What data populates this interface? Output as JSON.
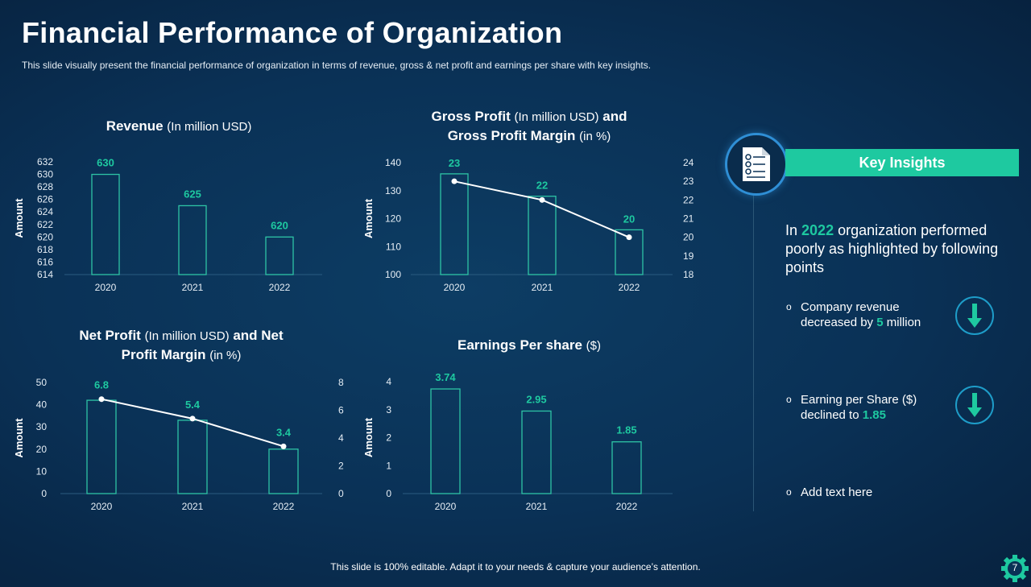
{
  "title": "Financial Performance of Organization",
  "subtitle": "This slide visually present the financial performance  of organization  in terms of revenue,  gross & net profit  and earnings  per share with key insights.",
  "colors": {
    "accent": "#1ec9a0",
    "bar_stroke": "#2ec4a5",
    "line": "#ffffff",
    "background": "#0a3156",
    "circle_border": "#2f8fd6"
  },
  "chart_data": [
    {
      "type": "bar",
      "title_bold": "Revenue",
      "title_unit": "(In million USD)",
      "ylabel": "Amount",
      "categories": [
        "2020",
        "2021",
        "2022"
      ],
      "series": [
        {
          "values": [
            630,
            625,
            620
          ]
        }
      ],
      "data_labels": [
        "630",
        "625",
        "620"
      ],
      "ylim": [
        614,
        632
      ],
      "yticks": [
        614,
        616,
        618,
        620,
        622,
        624,
        626,
        628,
        630,
        632
      ]
    },
    {
      "type": "bar+line",
      "title_parts": [
        "Gross Profit",
        "(In million USD)",
        "and",
        "Gross Profit Margin",
        "(in %)"
      ],
      "ylabel": "Amount",
      "categories": [
        "2020",
        "2021",
        "2022"
      ],
      "series": [
        {
          "type": "bar",
          "axis": "left",
          "values": [
            136,
            128,
            116
          ]
        },
        {
          "type": "line",
          "axis": "right",
          "values": [
            23,
            22,
            20
          ]
        }
      ],
      "data_labels": [
        "23",
        "22",
        "20"
      ],
      "ylim": [
        100,
        140
      ],
      "yticks": [
        100,
        110,
        120,
        130,
        140
      ],
      "y2lim": [
        18,
        24
      ],
      "y2ticks": [
        18,
        19,
        20,
        21,
        22,
        23,
        24
      ]
    },
    {
      "type": "bar+line",
      "title_parts": [
        "Net Profit",
        "(In million USD)",
        "and Net",
        "Profit Margin",
        "(in %)"
      ],
      "ylabel": "Amount",
      "categories": [
        "2020",
        "2021",
        "2022"
      ],
      "series": [
        {
          "type": "bar",
          "axis": "left",
          "values": [
            42,
            33,
            20
          ]
        },
        {
          "type": "line",
          "axis": "right",
          "values": [
            6.8,
            5.4,
            3.4
          ]
        }
      ],
      "data_labels": [
        "6.8",
        "5.4",
        "3.4"
      ],
      "ylim": [
        0,
        50
      ],
      "yticks": [
        0,
        10,
        20,
        30,
        40,
        50
      ],
      "y2lim": [
        0,
        8
      ],
      "y2ticks": [
        0,
        2,
        4,
        6,
        8
      ]
    },
    {
      "type": "bar",
      "title_bold": "Earnings Per share",
      "title_unit": "($)",
      "ylabel": "Amount",
      "categories": [
        "2020",
        "2021",
        "2022"
      ],
      "series": [
        {
          "values": [
            3.74,
            2.95,
            1.85
          ]
        }
      ],
      "data_labels": [
        "3.74",
        "2.95",
        "1.85"
      ],
      "ylim": [
        0,
        4
      ],
      "yticks": [
        0,
        1,
        2,
        3,
        4
      ]
    }
  ],
  "insights": {
    "heading": "Key Insights",
    "icon": "document-list-icon",
    "intro_pre": "In",
    "intro_year": "2022",
    "intro_post": "organization performed poorly as highlighted by following points",
    "points": [
      {
        "pre": "Company revenue decreased by",
        "hl": "5",
        "post": "million",
        "icon": "arrow-down-icon"
      },
      {
        "pre": "Earning per Share ($) declined to",
        "hl": "1.85",
        "post": "",
        "icon": "arrow-down-icon"
      },
      {
        "pre": "Add text here",
        "hl": "",
        "post": ""
      }
    ],
    "bullet": "o"
  },
  "footer": "This slide is 100% editable. Adapt it to your needs & capture your audience’s attention.",
  "page_number": "7"
}
